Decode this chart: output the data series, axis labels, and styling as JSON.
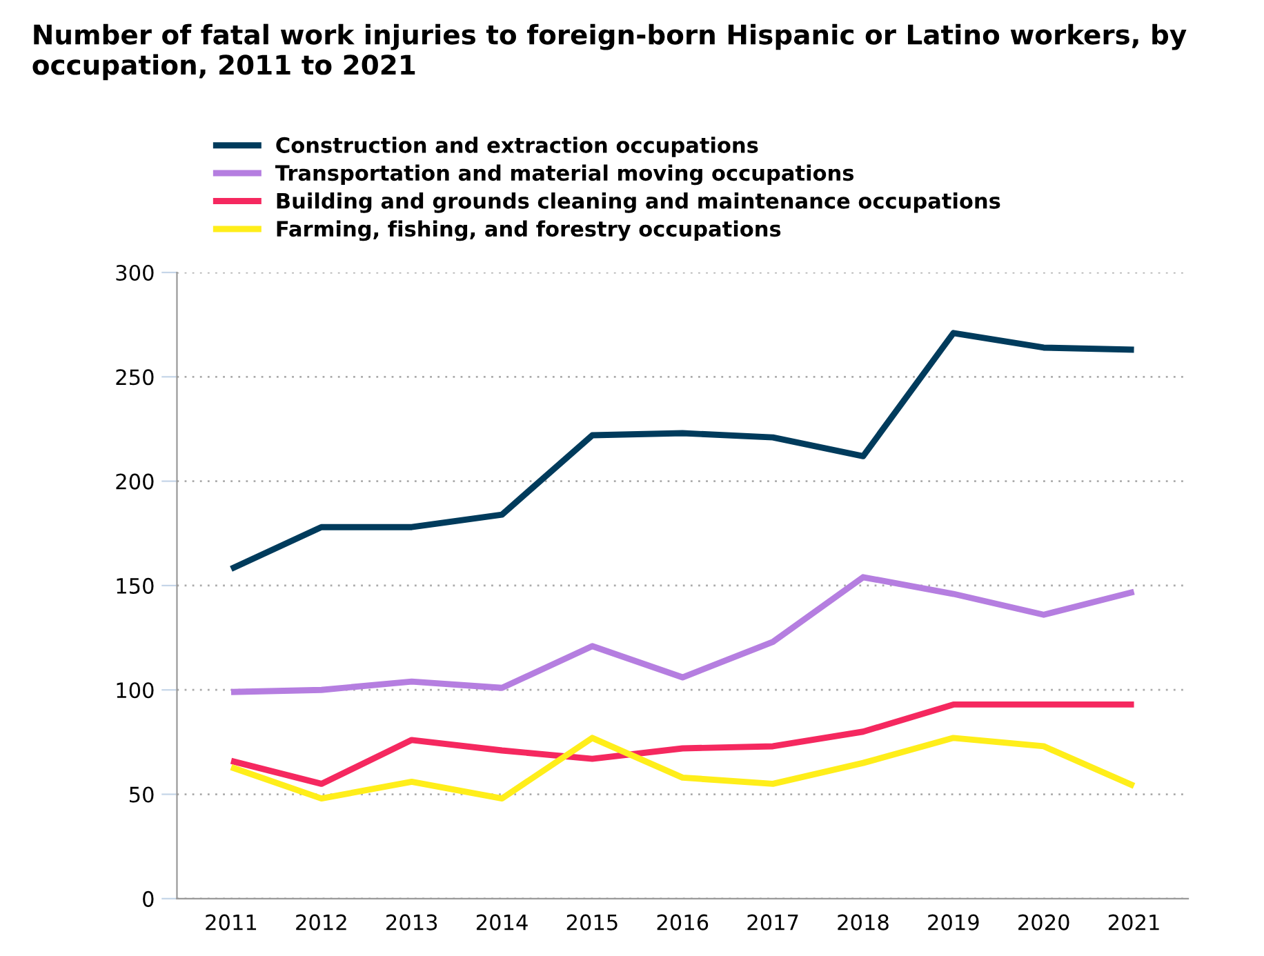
{
  "chart_data": {
    "type": "line",
    "title": "Number of fatal work injuries to foreign-born Hispanic or Latino workers, by\noccupation, 2011 to 2021",
    "categories": [
      "2011",
      "2012",
      "2013",
      "2014",
      "2015",
      "2016",
      "2017",
      "2018",
      "2019",
      "2020",
      "2021"
    ],
    "series": [
      {
        "name": "Construction and extraction occupations",
        "color": "#003b5c",
        "values": [
          158,
          178,
          178,
          184,
          222,
          223,
          221,
          212,
          271,
          264,
          263
        ]
      },
      {
        "name": "Transportation and material moving occupations",
        "color": "#b57ee0",
        "values": [
          99,
          100,
          104,
          101,
          121,
          106,
          123,
          154,
          146,
          136,
          147
        ]
      },
      {
        "name": "Building and grounds cleaning and maintenance occupations",
        "color": "#f5285f",
        "values": [
          66,
          55,
          76,
          71,
          67,
          72,
          73,
          80,
          93,
          93,
          93
        ]
      },
      {
        "name": "Farming, fishing, and forestry occupations",
        "color": "#ffee1a",
        "values": [
          63,
          48,
          56,
          48,
          77,
          58,
          55,
          65,
          77,
          73,
          54
        ]
      }
    ],
    "ylim": [
      0,
      300
    ],
    "yticks": [
      0,
      50,
      100,
      150,
      200,
      250,
      300
    ],
    "grid": "y",
    "legend": "top left",
    "marker": "none",
    "line_style": "solid"
  }
}
